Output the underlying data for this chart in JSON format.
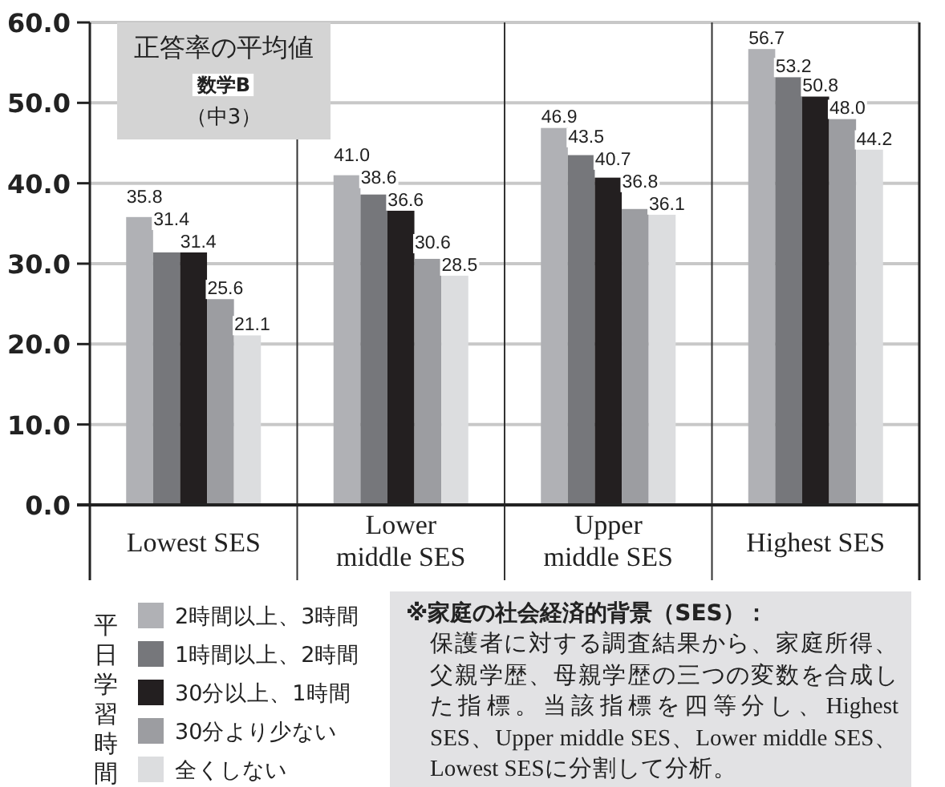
{
  "chart_data": {
    "type": "bar",
    "title": "正答率の平均値",
    "subtitle": "数学B",
    "categories": [
      "Lowest SES",
      "Lower middle SES",
      "Upper middle SES",
      "Highest SES"
    ],
    "series": [
      {
        "name": "2時間以上、3時間",
        "color": "#b0b1b5",
        "values": [
          35.8,
          41.0,
          46.9,
          56.7
        ],
        "value_labels": [
          "35.8",
          "41.0",
          "46.9",
          "56.7"
        ]
      },
      {
        "name": "1時間以上、2時間",
        "color": "#76777b",
        "values": [
          31.4,
          38.6,
          43.5,
          53.2
        ],
        "value_labels": [
          "31.4",
          "38.6",
          "43.5",
          "53.2"
        ]
      },
      {
        "name": "30分以上、1時間",
        "color": "#231f20",
        "values": [
          31.4,
          36.6,
          40.7,
          50.8
        ],
        "value_labels": [
          "31.4",
          "36.6",
          "40.7",
          "50.8"
        ]
      },
      {
        "name": "30分より少ない",
        "color": "#9c9da1",
        "values": [
          25.6,
          30.6,
          36.8,
          48.0
        ],
        "value_labels": [
          "25.6",
          "30.6",
          "36.8",
          "48.0"
        ]
      },
      {
        "name": "全くしない",
        "color": "#dcdddf",
        "values": [
          21.1,
          28.5,
          36.1,
          44.2
        ],
        "value_labels": [
          "21.1",
          "28.5",
          "36.1",
          "44.2"
        ]
      }
    ],
    "ylim": [
      0,
      60
    ],
    "yticks": [
      {
        "value": 0,
        "label": "0.0"
      },
      {
        "value": 10,
        "label": "10.0"
      },
      {
        "value": 20,
        "label": "20.0"
      },
      {
        "value": 30,
        "label": "30.0"
      },
      {
        "value": 40,
        "label": "40.0"
      },
      {
        "value": 50,
        "label": "50.0"
      },
      {
        "value": 60,
        "label": "60.0"
      }
    ],
    "grid": true,
    "legend": "bottom left",
    "legend_title": "平日学習時間",
    "annotations": [
      "（中3）",
      "※家庭の社会経済的背景（SES）：",
      "保護者に対する調査結果から、家庭所得、父親学歴、母親学歴の三つの変数を合成した指標。当該指標を四等分し、Highest SES、Upper middle SES、Lower middle SES、Lowest SESに分割して分析。"
    ]
  }
}
